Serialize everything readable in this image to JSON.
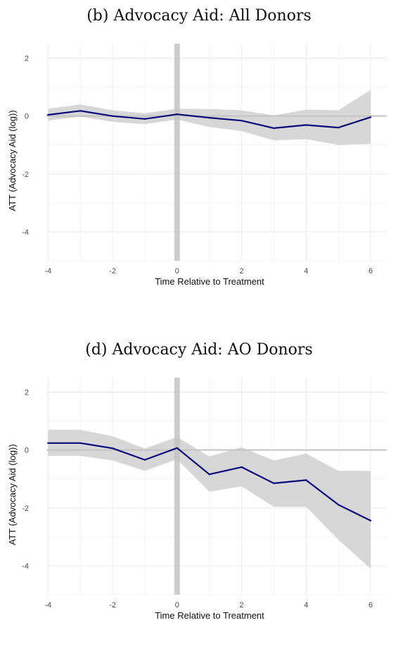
{
  "chart_data": [
    {
      "type": "line",
      "title": "(b) Advocacy Aid: All Donors",
      "xlabel": "Time Relative to Treatment",
      "ylabel": "ATT (Advocacy Aid (log))",
      "x": [
        -4,
        -3,
        -2,
        -1,
        0,
        1,
        2,
        3,
        4,
        5,
        6
      ],
      "series": [
        {
          "values": [
            0.04,
            0.18,
            0.0,
            -0.1,
            0.06,
            -0.06,
            -0.16,
            -0.42,
            -0.31,
            -0.4,
            -0.04
          ],
          "lower": [
            -0.16,
            -0.02,
            -0.2,
            -0.28,
            -0.12,
            -0.38,
            -0.52,
            -0.84,
            -0.8,
            -1.0,
            -0.96
          ],
          "upper": [
            0.25,
            0.4,
            0.2,
            0.1,
            0.25,
            0.24,
            0.2,
            0.02,
            0.22,
            0.2,
            0.9
          ]
        }
      ],
      "xlim": [
        -4.05,
        6.5
      ],
      "ylim": [
        -5.0,
        2.5
      ],
      "xticks": [
        -4,
        -2,
        0,
        2,
        4,
        6
      ],
      "yticks": [
        2,
        0,
        -2,
        -4
      ],
      "grid": true,
      "reference_vline": 0,
      "reference_hline": 0
    },
    {
      "type": "line",
      "title": "(d) Advocacy Aid: AO Donors",
      "xlabel": "Time Relative to Treatment",
      "ylabel": "ATT (Advocacy Aid (log))",
      "x": [
        -4,
        -3,
        -2,
        -1,
        0,
        1,
        2,
        3,
        4,
        5,
        6
      ],
      "series": [
        {
          "values": [
            0.24,
            0.24,
            0.06,
            -0.34,
            0.07,
            -0.84,
            -0.59,
            -1.15,
            -1.04,
            -1.89,
            -2.44
          ],
          "lower": [
            -0.2,
            -0.2,
            -0.36,
            -0.72,
            -0.32,
            -1.44,
            -1.26,
            -1.96,
            -1.96,
            -3.1,
            -4.1
          ],
          "upper": [
            0.7,
            0.7,
            0.48,
            0.05,
            0.45,
            -0.22,
            0.1,
            -0.36,
            -0.12,
            -0.72,
            -0.72
          ]
        }
      ],
      "xlim": [
        -4.05,
        6.5
      ],
      "ylim": [
        -5.0,
        2.5
      ],
      "xticks": [
        -4,
        -2,
        0,
        2,
        4,
        6
      ],
      "yticks": [
        2,
        0,
        -2,
        -4
      ],
      "grid": true,
      "reference_vline": 0,
      "reference_hline": 0
    }
  ],
  "colors": {
    "line": "#0b0b7a",
    "band": "#d3d3d3",
    "reference": "#c4c4c4",
    "grid": "#ececec"
  }
}
